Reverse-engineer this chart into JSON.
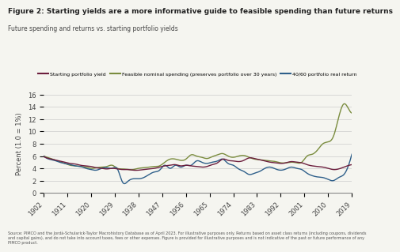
{
  "title": "Figure 2: Starting yields are a more informative guide to feasible spending than future returns",
  "subtitle": "Future spending and returns vs. starting portfolio yields",
  "ylabel": "Percent (1.0 = 1%)",
  "source_text": "Source: PIMCO and the Jordà-Schularick-Taylor Macrohistory Database as of April 2023. For illustrative purposes only. Returns based on asset class returns (including coupons, dividends\nand capital gains), and do not take into account taxes, fees or other expenses. Figure is provided for illustrative purposes and is not indicative of the past or future performance of any\nPIMCO product.",
  "ylim": [
    0,
    16
  ],
  "yticks": [
    0,
    2,
    4,
    6,
    8,
    10,
    12,
    14,
    16
  ],
  "years": [
    1902,
    1904,
    1906,
    1908,
    1910,
    1912,
    1914,
    1916,
    1918,
    1920,
    1922,
    1924,
    1926,
    1928,
    1930,
    1932,
    1934,
    1936,
    1938,
    1940,
    1942,
    1944,
    1946,
    1948,
    1950,
    1952,
    1954,
    1956,
    1958,
    1960,
    1962,
    1964,
    1966,
    1968,
    1970,
    1972,
    1974,
    1976,
    1978,
    1980,
    1982,
    1984,
    1986,
    1988,
    1990,
    1992,
    1994,
    1996,
    1998,
    2000,
    2002,
    2004,
    2006,
    2008,
    2010,
    2012,
    2014,
    2016,
    2018,
    2019
  ],
  "starting_yield": [
    5.9,
    5.6,
    5.4,
    5.2,
    5.0,
    4.8,
    4.7,
    4.5,
    4.4,
    4.3,
    4.1,
    4.0,
    3.9,
    4.0,
    3.9,
    3.8,
    3.8,
    3.7,
    3.7,
    3.8,
    3.9,
    4.0,
    4.2,
    4.4,
    4.5,
    4.6,
    4.4,
    4.5,
    4.4,
    4.3,
    4.2,
    4.3,
    4.6,
    4.9,
    5.5,
    5.3,
    5.2,
    5.1,
    5.3,
    5.7,
    5.6,
    5.4,
    5.2,
    5.0,
    4.9,
    4.8,
    4.9,
    5.1,
    5.0,
    4.9,
    4.6,
    4.4,
    4.3,
    4.2,
    4.0,
    3.8,
    3.9,
    4.2,
    4.5,
    4.6
  ],
  "feasible_spending": [
    6.0,
    5.7,
    5.4,
    5.1,
    4.8,
    4.5,
    4.4,
    4.3,
    4.2,
    4.0,
    4.1,
    4.2,
    4.3,
    4.5,
    4.0,
    3.9,
    3.8,
    3.8,
    4.0,
    4.1,
    4.2,
    4.3,
    4.4,
    5.0,
    5.5,
    5.5,
    5.3,
    5.5,
    6.2,
    6.0,
    5.8,
    5.6,
    5.9,
    6.2,
    6.4,
    6.0,
    5.8,
    6.0,
    6.1,
    5.8,
    5.5,
    5.4,
    5.3,
    5.2,
    5.1,
    4.9,
    4.9,
    5.0,
    4.9,
    5.0,
    6.0,
    6.3,
    7.0,
    8.0,
    8.3,
    9.2,
    12.3,
    14.5,
    13.5,
    13.0
  ],
  "portfolio_real_return": [
    6.0,
    5.5,
    5.3,
    5.0,
    4.8,
    4.6,
    4.4,
    4.3,
    4.0,
    3.8,
    3.7,
    4.0,
    4.1,
    4.0,
    3.9,
    1.7,
    1.9,
    2.3,
    2.3,
    2.5,
    3.0,
    3.4,
    3.7,
    4.5,
    4.0,
    4.5,
    4.2,
    4.5,
    4.5,
    5.2,
    5.0,
    4.8,
    5.0,
    5.2,
    5.5,
    4.8,
    4.5,
    3.9,
    3.5,
    3.0,
    3.2,
    3.5,
    4.0,
    4.2,
    3.9,
    3.7,
    3.9,
    4.2,
    4.0,
    3.8,
    3.2,
    2.8,
    2.6,
    2.5,
    2.2,
    2.0,
    2.5,
    3.0,
    4.8,
    6.3
  ],
  "color_yield": "#6d1f3e",
  "color_feasible": "#7a8c3e",
  "color_real": "#2e5f8a",
  "linewidth": 1.0,
  "bg_color": "#f5f5f0",
  "plot_bg": "#f5f5f0",
  "legend_labels": [
    "Starting portfolio yield",
    "Feasible nominal spending (preserves portfolio over 30 years)",
    "40/60 portfolio real return"
  ],
  "xtick_labels": [
    "1902",
    "1911",
    "1920",
    "1929",
    "1938",
    "1947",
    "1956",
    "1965",
    "1974",
    "1983",
    "1992",
    "2001",
    "2010",
    "2019"
  ],
  "xtick_positions": [
    1902,
    1911,
    1920,
    1929,
    1938,
    1947,
    1956,
    1965,
    1974,
    1983,
    1992,
    2001,
    2010,
    2019
  ]
}
